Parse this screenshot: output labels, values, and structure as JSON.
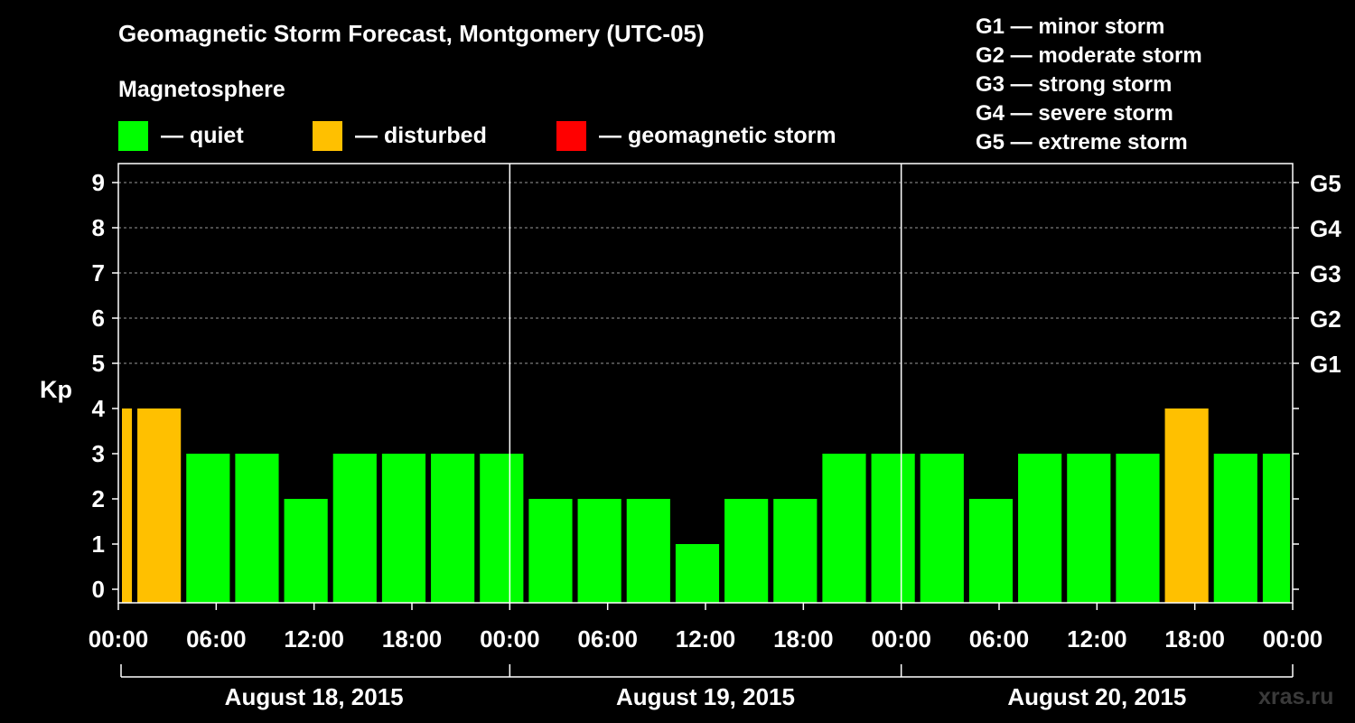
{
  "header": {
    "title": "Geomagnetic Storm Forecast, Montgomery (UTC-05)",
    "subtitle": "Magnetosphere"
  },
  "legend": {
    "items": [
      {
        "label": "— quiet",
        "color": "#00ff00"
      },
      {
        "label": "— disturbed",
        "color": "#ffc000"
      },
      {
        "label": "— geomagnetic storm",
        "color": "#ff0000"
      }
    ]
  },
  "storm_scale": [
    "G1 — minor storm",
    "G2 — moderate storm",
    "G3 — strong storm",
    "G4 — severe storm",
    "G5 — extreme storm"
  ],
  "watermark": "xras.ru",
  "chart_data": {
    "type": "bar",
    "ylabel": "Kp",
    "ylim": [
      0,
      9
    ],
    "y_ticks": [
      "0",
      "1",
      "2",
      "3",
      "4",
      "5",
      "6",
      "7",
      "8",
      "9"
    ],
    "right_ticks": [
      {
        "kp": 5,
        "label": "G1"
      },
      {
        "kp": 6,
        "label": "G2"
      },
      {
        "kp": 7,
        "label": "G3"
      },
      {
        "kp": 8,
        "label": "G4"
      },
      {
        "kp": 9,
        "label": "G5"
      }
    ],
    "grid": "horizontal dashed at Kp 5-9",
    "x_range_hours": [
      0,
      72
    ],
    "x_tick_labels": [
      "00:00",
      "06:00",
      "12:00",
      "18:00",
      "00:00",
      "06:00",
      "12:00",
      "18:00",
      "00:00",
      "06:00",
      "12:00",
      "18:00",
      "00:00"
    ],
    "days": [
      "August 18, 2015",
      "August 19, 2015",
      "August 20, 2015"
    ],
    "bars": [
      {
        "start": 0,
        "end": 1,
        "kp": 4,
        "status": "disturbed"
      },
      {
        "start": 1,
        "end": 4,
        "kp": 4,
        "status": "disturbed"
      },
      {
        "start": 4,
        "end": 7,
        "kp": 3,
        "status": "quiet"
      },
      {
        "start": 7,
        "end": 10,
        "kp": 3,
        "status": "quiet"
      },
      {
        "start": 10,
        "end": 13,
        "kp": 2,
        "status": "quiet"
      },
      {
        "start": 13,
        "end": 16,
        "kp": 3,
        "status": "quiet"
      },
      {
        "start": 16,
        "end": 19,
        "kp": 3,
        "status": "quiet"
      },
      {
        "start": 19,
        "end": 22,
        "kp": 3,
        "status": "quiet"
      },
      {
        "start": 22,
        "end": 25,
        "kp": 3,
        "status": "quiet"
      },
      {
        "start": 25,
        "end": 28,
        "kp": 2,
        "status": "quiet"
      },
      {
        "start": 28,
        "end": 31,
        "kp": 2,
        "status": "quiet"
      },
      {
        "start": 31,
        "end": 34,
        "kp": 2,
        "status": "quiet"
      },
      {
        "start": 34,
        "end": 37,
        "kp": 1,
        "status": "quiet"
      },
      {
        "start": 37,
        "end": 40,
        "kp": 2,
        "status": "quiet"
      },
      {
        "start": 40,
        "end": 43,
        "kp": 2,
        "status": "quiet"
      },
      {
        "start": 43,
        "end": 46,
        "kp": 3,
        "status": "quiet"
      },
      {
        "start": 46,
        "end": 49,
        "kp": 3,
        "status": "quiet"
      },
      {
        "start": 49,
        "end": 52,
        "kp": 3,
        "status": "quiet"
      },
      {
        "start": 52,
        "end": 55,
        "kp": 2,
        "status": "quiet"
      },
      {
        "start": 55,
        "end": 58,
        "kp": 3,
        "status": "quiet"
      },
      {
        "start": 58,
        "end": 61,
        "kp": 3,
        "status": "quiet"
      },
      {
        "start": 61,
        "end": 64,
        "kp": 3,
        "status": "quiet"
      },
      {
        "start": 64,
        "end": 67,
        "kp": 4,
        "status": "disturbed"
      },
      {
        "start": 67,
        "end": 70,
        "kp": 3,
        "status": "quiet"
      },
      {
        "start": 70,
        "end": 72,
        "kp": 3,
        "status": "quiet"
      }
    ],
    "status_colors": {
      "quiet": "#00ff00",
      "disturbed": "#ffc000",
      "storm": "#ff0000"
    }
  }
}
